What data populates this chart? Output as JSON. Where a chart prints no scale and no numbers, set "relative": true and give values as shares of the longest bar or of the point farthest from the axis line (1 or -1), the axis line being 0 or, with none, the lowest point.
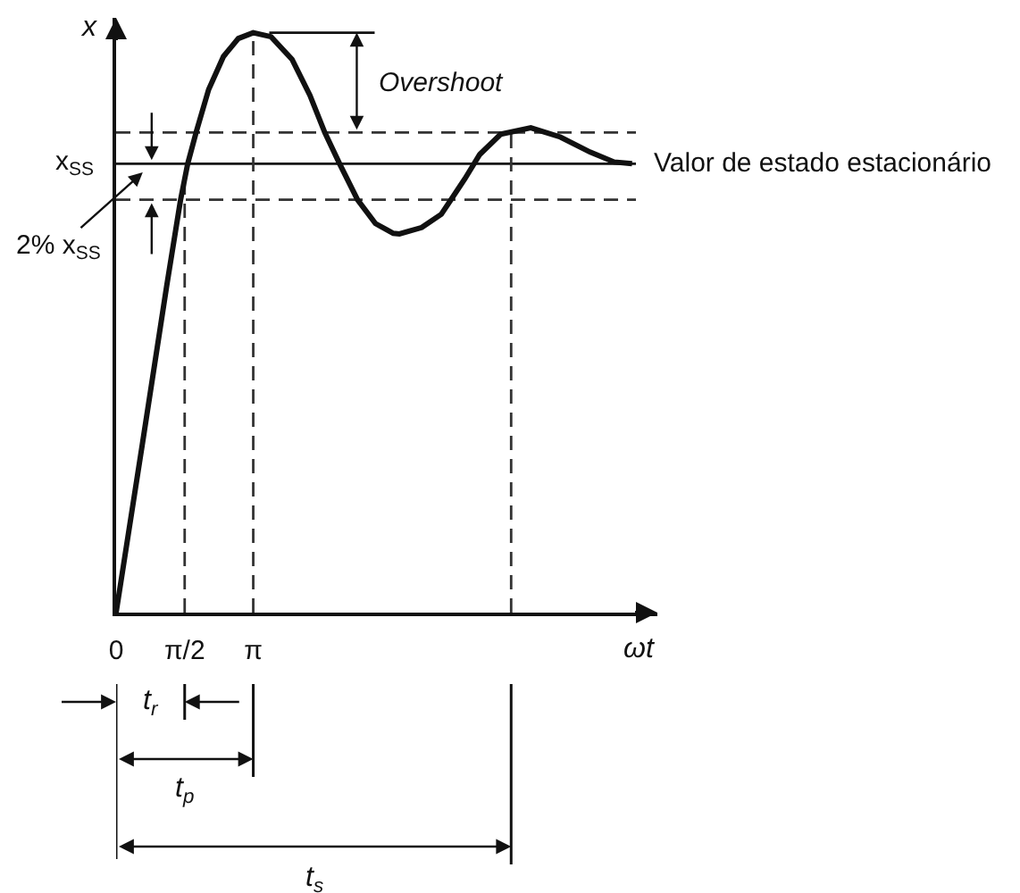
{
  "chart_data": {
    "type": "line",
    "xlabel": "ωt",
    "ylabel": "x",
    "relative": true,
    "x": [
      0,
      0.6,
      1.16,
      1.475,
      1.64,
      1.84,
      2.12,
      2.46,
      2.8,
      3.14,
      3.55,
      4.03,
      4.44,
      4.78,
      5.12,
      5.53,
      5.94,
      6.35,
      6.49,
      7.0,
      7.45,
      7.99,
      8.33,
      8.81,
      9.5,
      10.18,
      10.86,
      11.41,
      11.82
    ],
    "values": [
      0,
      0.29,
      0.564,
      0.711,
      0.774,
      0.83,
      0.902,
      0.959,
      0.99,
      1.0,
      0.993,
      0.954,
      0.892,
      0.828,
      0.774,
      0.712,
      0.671,
      0.654,
      0.653,
      0.664,
      0.687,
      0.748,
      0.79,
      0.825,
      0.836,
      0.82,
      0.794,
      0.777,
      0.774
    ],
    "color": "#111111",
    "xlim": [
      0,
      12.4
    ],
    "xticks": [
      0,
      {
        "value": 1.5708,
        "label": "π/2"
      },
      {
        "value": 3.1416,
        "label": "π"
      }
    ],
    "tick_labels": "x",
    "ref_lines": [
      {
        "axis": "y",
        "value": 0.774,
        "label": "Valor de estado estacionário",
        "line_style": "solid",
        "color": "#111111"
      },
      {
        "axis": "y",
        "value": 0.828,
        "line_style": "dashed",
        "color": "#333333"
      },
      {
        "axis": "y",
        "value": 0.712,
        "line_style": "dashed",
        "color": "#333333"
      },
      {
        "axis": "x",
        "value": 1.5708,
        "line_style": "dashed",
        "color": "#333333"
      },
      {
        "axis": "x",
        "value": 3.1416,
        "line_style": "dashed",
        "color": "#333333"
      },
      {
        "axis": "x",
        "value": 9.05,
        "line_style": "dashed",
        "color": "#333333"
      }
    ],
    "annotations": [
      {
        "text": "x$_{SS}$",
        "x": 0,
        "y": 0.774
      },
      {
        "text": "2% x$_{SS}$",
        "x": 0.61,
        "y": 0.759
      },
      "Overshoot",
      "t$_{r}$",
      "t$_{p}$",
      "t$_{s}$"
    ]
  }
}
